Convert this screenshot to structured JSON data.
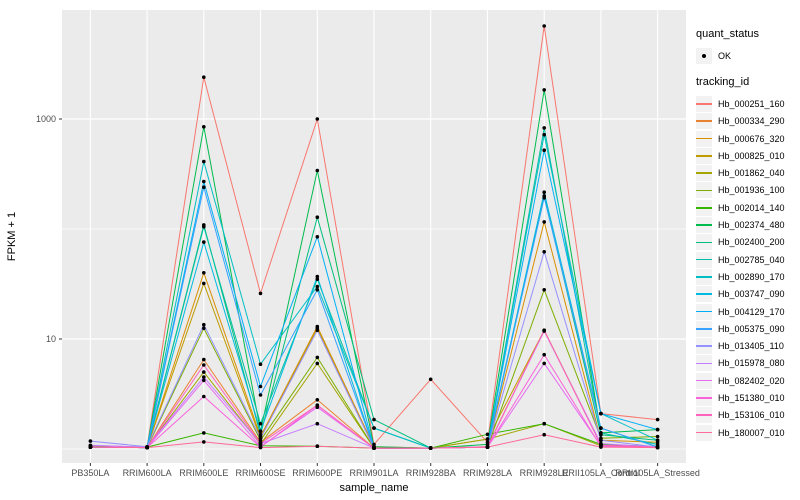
{
  "figure": {
    "background": "#FFFFFF",
    "panel_background": "#EBEBEB",
    "grid_color": "#FFFFFF",
    "point_color": "#000000",
    "axis_text_color": "#4D4D4D",
    "key_background": "#F2F2F2"
  },
  "chart_data": {
    "type": "line",
    "title": "",
    "xlabel": "sample_name",
    "ylabel": "FPKM + 1",
    "y_scale": "log10",
    "y_ticks": [
      10,
      1000
    ],
    "y_minor_ticks": [
      1,
      100
    ],
    "ylim": [
      0.75,
      10000
    ],
    "grid": true,
    "legend_position": "right",
    "point_marker": "black dot at every vertex",
    "legend": {
      "quant_status_title": "quant_status",
      "quant_status_items": [
        {
          "label": "OK",
          "symbol": "point"
        }
      ],
      "tracking_id_title": "tracking_id"
    },
    "categories": [
      "PB350LA",
      "RRIM600LA",
      "RRIM600LE",
      "RRIM600SE",
      "RRIM600PE",
      "RRIM901LA",
      "RRIM928BA",
      "RRIM928LA",
      "RRIM928LE",
      "RRII105LA_Control",
      "RRII105LA_Stressed"
    ],
    "series": [
      {
        "name": "Hb_000251_160",
        "color": "#F8766D",
        "values": [
          1.05,
          1.04,
          2400,
          26,
          1000,
          1.1,
          4.3,
          1.15,
          7000,
          2.1,
          1.85
        ]
      },
      {
        "name": "Hb_000334_290",
        "color": "#EA8331",
        "values": [
          1.04,
          1.03,
          6.5,
          1.15,
          2.8,
          1.02,
          1.02,
          1.05,
          12.0,
          1.1,
          1.05
        ]
      },
      {
        "name": "Hb_000676_320",
        "color": "#D89000",
        "values": [
          1.04,
          1.03,
          40,
          1.3,
          13,
          1.05,
          1.02,
          1.05,
          116,
          1.2,
          1.15
        ]
      },
      {
        "name": "Hb_000825_010",
        "color": "#C09B00",
        "values": [
          1.04,
          1.03,
          32,
          1.25,
          12.5,
          1.02,
          1.02,
          1.23,
          12.0,
          1.1,
          1.05
        ]
      },
      {
        "name": "Hb_001862_040",
        "color": "#A3A500",
        "values": [
          1.04,
          1.03,
          5.0,
          1.1,
          6.0,
          1.02,
          1.02,
          1.23,
          1.7,
          1.07,
          1.04
        ]
      },
      {
        "name": "Hb_001936_100",
        "color": "#7CAE00",
        "values": [
          1.04,
          1.03,
          12.5,
          1.2,
          6.8,
          1.02,
          1.02,
          1.04,
          28,
          1.25,
          1.3
        ]
      },
      {
        "name": "Hb_002014_140",
        "color": "#39B600",
        "values": [
          1.07,
          1.04,
          1.4,
          1.07,
          1.06,
          1.02,
          1.02,
          1.36,
          1.7,
          1.1,
          1.05
        ]
      },
      {
        "name": "Hb_002374_480",
        "color": "#00BB4E",
        "values": [
          1.05,
          1.04,
          850,
          1.45,
          340,
          1.05,
          1.02,
          1.1,
          1840,
          1.4,
          1.5
        ]
      },
      {
        "name": "Hb_002400_200",
        "color": "#00BF7D",
        "values": [
          1.04,
          1.03,
          109,
          1.35,
          128,
          1.85,
          1.02,
          1.04,
          200,
          1.35,
          1.2
        ]
      },
      {
        "name": "Hb_002785_040",
        "color": "#00C1A3",
        "values": [
          1.04,
          1.03,
          105,
          1.7,
          35,
          1.55,
          1.02,
          1.04,
          830,
          1.4,
          1.1
        ]
      },
      {
        "name": "Hb_002890_170",
        "color": "#00BFC4",
        "values": [
          1.04,
          1.03,
          410,
          5.9,
          30,
          1.55,
          1.02,
          1.04,
          720,
          2.1,
          1.2
        ]
      },
      {
        "name": "Hb_003747_090",
        "color": "#00BAE0",
        "values": [
          1.04,
          1.03,
          76,
          1.45,
          37,
          1.02,
          1.02,
          1.04,
          216,
          1.55,
          1.05
        ]
      },
      {
        "name": "Hb_004129_170",
        "color": "#00B0F6",
        "values": [
          1.04,
          1.03,
          270,
          3.7,
          85,
          1.02,
          1.02,
          1.04,
          520,
          2.1,
          1.5
        ]
      },
      {
        "name": "Hb_005375_090",
        "color": "#35A2FF",
        "values": [
          1.04,
          1.03,
          240,
          3.1,
          28,
          1.02,
          1.02,
          1.04,
          192,
          1.55,
          1.04
        ]
      },
      {
        "name": "Hb_013405_110",
        "color": "#9590FF",
        "values": [
          1.18,
          1.05,
          13.5,
          1.25,
          12,
          1.02,
          1.02,
          1.05,
          62,
          1.2,
          1.04
        ]
      },
      {
        "name": "Hb_015978_080",
        "color": "#C77CFF",
        "values": [
          1.08,
          1.04,
          4.5,
          1.12,
          1.7,
          1.02,
          1.02,
          1.04,
          11.8,
          1.12,
          1.04
        ]
      },
      {
        "name": "Hb_082402_020",
        "color": "#E76BF3",
        "values": [
          1.05,
          1.03,
          4.2,
          1.05,
          2.4,
          1.02,
          1.02,
          1.04,
          6.0,
          1.07,
          1.03
        ]
      },
      {
        "name": "Hb_151380_010",
        "color": "#FA62DB",
        "values": [
          1.04,
          1.03,
          3.0,
          1.04,
          2.5,
          1.02,
          1.02,
          1.04,
          7.2,
          1.05,
          1.03
        ]
      },
      {
        "name": "Hb_153106_010",
        "color": "#FF62BC",
        "values": [
          1.04,
          1.03,
          5.8,
          1.12,
          2.5,
          1.02,
          1.02,
          1.04,
          12.0,
          1.08,
          1.04
        ]
      },
      {
        "name": "Hb_180007_010",
        "color": "#FF6A98",
        "values": [
          1.04,
          1.03,
          1.16,
          1.03,
          1.06,
          1.02,
          1.02,
          1.04,
          1.35,
          1.04,
          1.03
        ]
      }
    ]
  }
}
